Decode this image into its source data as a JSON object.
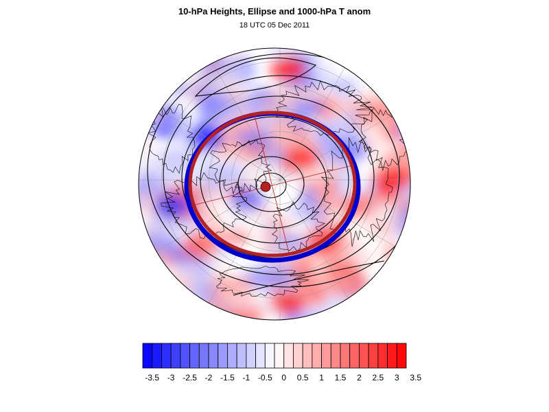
{
  "figure": {
    "title": "10-hPa Heights, Ellipse and 1000-hPa T anom",
    "subtitle": "18 UTC 05 Dec 2011"
  },
  "colorbar": {
    "low_color": "#0000ff",
    "mid_color": "#ffffff",
    "high_color": "#ff0000",
    "levels": [
      -3.5,
      -3.25,
      -3,
      -2.75,
      -2.5,
      -2.25,
      -2,
      -1.75,
      -1.5,
      -1.25,
      -1,
      -0.75,
      -0.5,
      -0.25,
      0,
      0.25,
      0.5,
      0.75,
      1,
      1.25,
      1.5,
      1.75,
      2,
      2.25,
      2.5,
      2.75,
      3,
      3.25,
      3.5
    ],
    "tick_labels": [
      "-3.5",
      "-3",
      "-2.5",
      "-2",
      "-1.5",
      "-1",
      "-0.5",
      "0",
      "0.5",
      "1",
      "1.5",
      "2",
      "2.5",
      "3",
      "3.5"
    ]
  },
  "map_style": {
    "ellipse_color": "#b22222",
    "ellipse_underlay_color": "#0000cc",
    "contour_color": "#000000",
    "grid_color": "#999999",
    "projection": "polar-stereographic"
  }
}
